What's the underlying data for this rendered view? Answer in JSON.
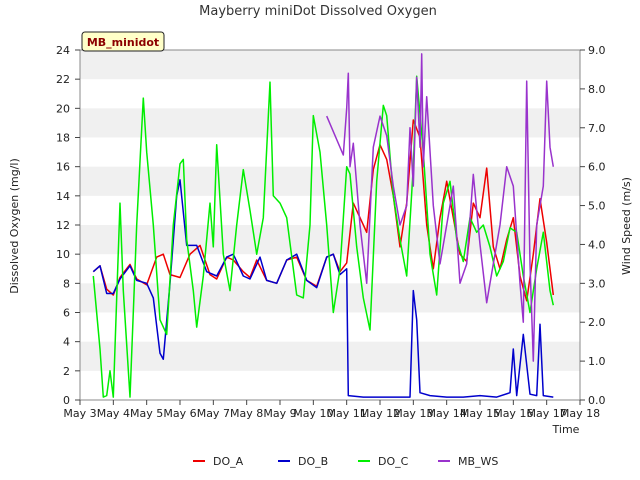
{
  "chart_data": {
    "type": "line",
    "title": "Mayberry miniDot Dissolved Oxygen",
    "badge": "MB_minidot",
    "xlabel": "Time",
    "ylabel": "Dissolved Oxygen (mg/l)",
    "y2label": "Wind Speed (m/s)",
    "xlim": [
      3,
      18
    ],
    "ylim": [
      0,
      24
    ],
    "y2lim": [
      0,
      9
    ],
    "grid": "horizontal bands",
    "legend_position": "bottom",
    "x_ticks": [
      3,
      4,
      5,
      6,
      7,
      8,
      9,
      10,
      11,
      12,
      13,
      14,
      15,
      16,
      17,
      18
    ],
    "x_tick_labels": [
      "May 3",
      "May 4",
      "May 5",
      "May 6",
      "May 7",
      "May 8",
      "May 9",
      "May 10",
      "May 11",
      "May 12",
      "May 13",
      "May 14",
      "May 15",
      "May 16",
      "May 17",
      "May 18"
    ],
    "y_ticks": [
      0,
      2,
      4,
      6,
      8,
      10,
      12,
      14,
      16,
      18,
      20,
      22,
      24
    ],
    "y_tick_labels": [
      "0",
      "2",
      "4",
      "6",
      "8",
      "10",
      "12",
      "14",
      "16",
      "18",
      "20",
      "22",
      "24"
    ],
    "y2_ticks": [
      0,
      1,
      2,
      3,
      4,
      5,
      6,
      7,
      8,
      9
    ],
    "y2_tick_labels": [
      "0.0",
      "1.0",
      "2.0",
      "3.0",
      "4.0",
      "5.0",
      "6.0",
      "7.0",
      "8.0",
      "9.0"
    ],
    "series": [
      {
        "name": "DO_A",
        "color": "#ee0000",
        "axis": "left",
        "points": [
          [
            3.4,
            8.8
          ],
          [
            3.6,
            9.2
          ],
          [
            3.8,
            7.6
          ],
          [
            4.0,
            7.2
          ],
          [
            4.2,
            8.4
          ],
          [
            4.5,
            9.3
          ],
          [
            4.7,
            8.3
          ],
          [
            5.0,
            7.9
          ],
          [
            5.3,
            9.8
          ],
          [
            5.5,
            10.0
          ],
          [
            5.7,
            8.6
          ],
          [
            6.0,
            8.4
          ],
          [
            6.3,
            10.0
          ],
          [
            6.6,
            10.6
          ],
          [
            6.9,
            8.6
          ],
          [
            7.1,
            8.3
          ],
          [
            7.4,
            9.8
          ],
          [
            7.6,
            9.6
          ],
          [
            7.9,
            8.8
          ],
          [
            8.1,
            8.4
          ],
          [
            8.3,
            9.6
          ],
          [
            8.6,
            8.2
          ],
          [
            8.9,
            8.0
          ],
          [
            9.2,
            9.6
          ],
          [
            9.5,
            9.8
          ],
          [
            9.8,
            8.2
          ],
          [
            10.1,
            7.8
          ],
          [
            10.4,
            9.8
          ],
          [
            10.6,
            10.0
          ],
          [
            10.8,
            8.8
          ],
          [
            11.0,
            9.4
          ],
          [
            11.2,
            13.5
          ],
          [
            11.4,
            12.5
          ],
          [
            11.6,
            11.5
          ],
          [
            11.8,
            15.8
          ],
          [
            12.0,
            17.5
          ],
          [
            12.2,
            16.5
          ],
          [
            12.4,
            14.0
          ],
          [
            12.6,
            10.5
          ],
          [
            12.8,
            13.5
          ],
          [
            13.0,
            19.2
          ],
          [
            13.2,
            18.0
          ],
          [
            13.4,
            12.0
          ],
          [
            13.6,
            9.0
          ],
          [
            13.8,
            12.5
          ],
          [
            14.0,
            15.0
          ],
          [
            14.2,
            12.5
          ],
          [
            14.4,
            10.0
          ],
          [
            14.6,
            9.5
          ],
          [
            14.8,
            13.5
          ],
          [
            15.0,
            12.5
          ],
          [
            15.2,
            15.9
          ],
          [
            15.4,
            10.5
          ],
          [
            15.6,
            9.0
          ],
          [
            15.8,
            11.0
          ],
          [
            16.0,
            12.5
          ],
          [
            16.2,
            8.5
          ],
          [
            16.4,
            6.8
          ],
          [
            16.6,
            10.0
          ],
          [
            16.8,
            13.8
          ],
          [
            17.0,
            10.8
          ],
          [
            17.2,
            7.2
          ]
        ]
      },
      {
        "name": "DO_B",
        "color": "#0000cc",
        "axis": "left",
        "points": [
          [
            3.4,
            8.8
          ],
          [
            3.6,
            9.2
          ],
          [
            3.8,
            7.3
          ],
          [
            4.0,
            7.3
          ],
          [
            4.2,
            8.3
          ],
          [
            4.5,
            9.2
          ],
          [
            4.7,
            8.2
          ],
          [
            5.0,
            8.0
          ],
          [
            5.2,
            7.0
          ],
          [
            5.4,
            3.2
          ],
          [
            5.5,
            2.8
          ],
          [
            5.7,
            8.0
          ],
          [
            5.9,
            14.0
          ],
          [
            6.0,
            15.1
          ],
          [
            6.2,
            10.6
          ],
          [
            6.5,
            10.6
          ],
          [
            6.8,
            8.8
          ],
          [
            7.1,
            8.5
          ],
          [
            7.4,
            9.8
          ],
          [
            7.6,
            10.0
          ],
          [
            7.9,
            8.5
          ],
          [
            8.1,
            8.3
          ],
          [
            8.4,
            9.8
          ],
          [
            8.6,
            8.2
          ],
          [
            8.9,
            8.0
          ],
          [
            9.2,
            9.6
          ],
          [
            9.5,
            10.0
          ],
          [
            9.8,
            8.2
          ],
          [
            10.1,
            7.7
          ],
          [
            10.4,
            9.8
          ],
          [
            10.6,
            10.0
          ],
          [
            10.8,
            8.6
          ],
          [
            11.0,
            9.0
          ],
          [
            11.05,
            0.3
          ],
          [
            11.5,
            0.2
          ],
          [
            12.0,
            0.2
          ],
          [
            12.5,
            0.2
          ],
          [
            12.9,
            0.2
          ],
          [
            13.0,
            7.5
          ],
          [
            13.1,
            5.5
          ],
          [
            13.2,
            0.5
          ],
          [
            13.5,
            0.3
          ],
          [
            14.0,
            0.2
          ],
          [
            14.5,
            0.2
          ],
          [
            15.0,
            0.3
          ],
          [
            15.5,
            0.2
          ],
          [
            15.9,
            0.5
          ],
          [
            16.0,
            3.5
          ],
          [
            16.1,
            0.3
          ],
          [
            16.3,
            4.5
          ],
          [
            16.5,
            0.4
          ],
          [
            16.7,
            0.3
          ],
          [
            16.8,
            5.2
          ],
          [
            16.9,
            0.3
          ],
          [
            17.2,
            0.2
          ]
        ]
      },
      {
        "name": "DO_C",
        "color": "#00ee00",
        "axis": "left",
        "points": [
          [
            3.4,
            8.5
          ],
          [
            3.6,
            3.5
          ],
          [
            3.7,
            0.2
          ],
          [
            3.8,
            0.3
          ],
          [
            3.9,
            2.0
          ],
          [
            4.0,
            0.2
          ],
          [
            4.1,
            7.0
          ],
          [
            4.2,
            13.5
          ],
          [
            4.3,
            7.5
          ],
          [
            4.5,
            0.2
          ],
          [
            4.7,
            12.0
          ],
          [
            4.9,
            20.7
          ],
          [
            5.0,
            17.0
          ],
          [
            5.2,
            12.0
          ],
          [
            5.4,
            5.5
          ],
          [
            5.6,
            4.5
          ],
          [
            5.8,
            12.0
          ],
          [
            6.0,
            16.2
          ],
          [
            6.1,
            16.5
          ],
          [
            6.2,
            11.0
          ],
          [
            6.4,
            7.5
          ],
          [
            6.5,
            5.0
          ],
          [
            6.7,
            8.5
          ],
          [
            6.9,
            13.5
          ],
          [
            7.0,
            10.5
          ],
          [
            7.1,
            17.5
          ],
          [
            7.3,
            10.0
          ],
          [
            7.5,
            7.5
          ],
          [
            7.7,
            12.0
          ],
          [
            7.9,
            15.8
          ],
          [
            8.1,
            13.0
          ],
          [
            8.3,
            10.0
          ],
          [
            8.5,
            12.5
          ],
          [
            8.7,
            21.8
          ],
          [
            8.8,
            14.0
          ],
          [
            9.0,
            13.5
          ],
          [
            9.2,
            12.5
          ],
          [
            9.5,
            7.2
          ],
          [
            9.7,
            7.0
          ],
          [
            9.9,
            12.0
          ],
          [
            10.0,
            19.5
          ],
          [
            10.2,
            17.0
          ],
          [
            10.4,
            12.0
          ],
          [
            10.6,
            6.0
          ],
          [
            10.8,
            9.0
          ],
          [
            11.0,
            16.0
          ],
          [
            11.1,
            15.5
          ],
          [
            11.3,
            10.5
          ],
          [
            11.5,
            7.0
          ],
          [
            11.7,
            4.8
          ],
          [
            11.9,
            15.0
          ],
          [
            12.1,
            20.2
          ],
          [
            12.2,
            19.5
          ],
          [
            12.4,
            14.0
          ],
          [
            12.6,
            11.0
          ],
          [
            12.8,
            8.5
          ],
          [
            13.0,
            16.0
          ],
          [
            13.1,
            22.2
          ],
          [
            13.3,
            17.0
          ],
          [
            13.5,
            10.0
          ],
          [
            13.7,
            7.2
          ],
          [
            13.9,
            13.5
          ],
          [
            14.1,
            15.0
          ],
          [
            14.3,
            11.0
          ],
          [
            14.5,
            9.5
          ],
          [
            14.7,
            12.5
          ],
          [
            14.9,
            11.5
          ],
          [
            15.1,
            12.0
          ],
          [
            15.3,
            10.5
          ],
          [
            15.5,
            8.5
          ],
          [
            15.7,
            9.5
          ],
          [
            15.9,
            11.8
          ],
          [
            16.1,
            11.5
          ],
          [
            16.3,
            8.5
          ],
          [
            16.5,
            6.0
          ],
          [
            16.7,
            9.0
          ],
          [
            16.9,
            11.5
          ],
          [
            17.1,
            7.5
          ],
          [
            17.2,
            6.5
          ]
        ]
      },
      {
        "name": "MB_WS",
        "color": "#9933cc",
        "axis": "right",
        "points": [
          [
            10.4,
            7.3
          ],
          [
            10.9,
            6.3
          ],
          [
            11.0,
            7.5
          ],
          [
            11.05,
            8.4
          ],
          [
            11.1,
            6.0
          ],
          [
            11.2,
            6.6
          ],
          [
            11.4,
            4.5
          ],
          [
            11.6,
            3.0
          ],
          [
            11.8,
            6.5
          ],
          [
            12.0,
            7.3
          ],
          [
            12.2,
            6.8
          ],
          [
            12.4,
            5.5
          ],
          [
            12.6,
            4.5
          ],
          [
            12.8,
            5.0
          ],
          [
            12.9,
            7.0
          ],
          [
            13.0,
            5.5
          ],
          [
            13.1,
            8.3
          ],
          [
            13.2,
            6.5
          ],
          [
            13.25,
            8.9
          ],
          [
            13.3,
            6.0
          ],
          [
            13.4,
            7.8
          ],
          [
            13.6,
            5.0
          ],
          [
            13.8,
            3.5
          ],
          [
            14.0,
            4.5
          ],
          [
            14.2,
            5.5
          ],
          [
            14.4,
            3.0
          ],
          [
            14.6,
            3.5
          ],
          [
            14.8,
            5.8
          ],
          [
            15.0,
            4.0
          ],
          [
            15.2,
            2.5
          ],
          [
            15.4,
            3.5
          ],
          [
            15.6,
            4.5
          ],
          [
            15.8,
            6.0
          ],
          [
            16.0,
            5.5
          ],
          [
            16.2,
            3.0
          ],
          [
            16.3,
            2.0
          ],
          [
            16.4,
            8.2
          ],
          [
            16.5,
            3.5
          ],
          [
            16.6,
            1.0
          ],
          [
            16.7,
            4.5
          ],
          [
            16.9,
            5.5
          ],
          [
            17.0,
            8.2
          ],
          [
            17.1,
            6.5
          ],
          [
            17.2,
            6.0
          ]
        ]
      }
    ]
  }
}
